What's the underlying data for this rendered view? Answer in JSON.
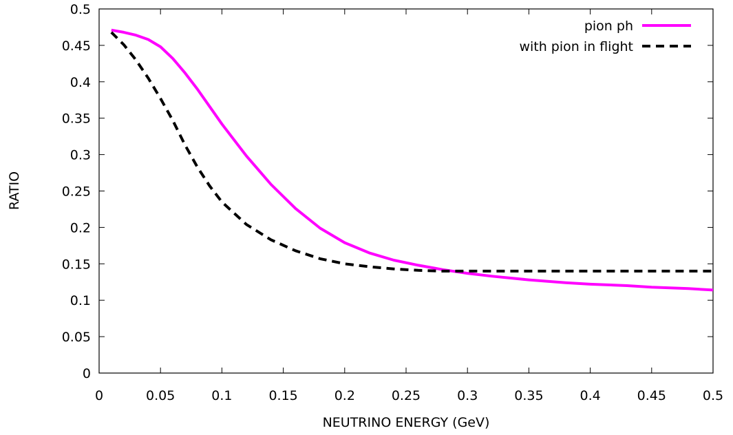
{
  "chart_data": {
    "type": "line",
    "title": "",
    "xlabel": "NEUTRINO ENERGY (GeV)",
    "ylabel": "RATIO",
    "xlim": [
      0,
      0.5
    ],
    "ylim": [
      0,
      0.5
    ],
    "x_ticks": [
      "0",
      "0.05",
      "0.1",
      "0.15",
      "0.2",
      "0.25",
      "0.3",
      "0.35",
      "0.4",
      "0.45",
      "0.5"
    ],
    "y_ticks": [
      "0",
      "0.05",
      "0.1",
      "0.15",
      "0.2",
      "0.25",
      "0.3",
      "0.35",
      "0.4",
      "0.45",
      "0.5"
    ],
    "grid": false,
    "legend_position": "top-right",
    "series": [
      {
        "name": "pion ph",
        "color": "#ff00ff",
        "style": "solid",
        "x": [
          0.01,
          0.02,
          0.03,
          0.04,
          0.05,
          0.06,
          0.07,
          0.08,
          0.09,
          0.1,
          0.12,
          0.14,
          0.16,
          0.18,
          0.2,
          0.22,
          0.24,
          0.26,
          0.28,
          0.3,
          0.32,
          0.35,
          0.38,
          0.4,
          0.43,
          0.45,
          0.48,
          0.5
        ],
        "y": [
          0.471,
          0.468,
          0.464,
          0.458,
          0.448,
          0.432,
          0.412,
          0.39,
          0.366,
          0.342,
          0.298,
          0.259,
          0.226,
          0.199,
          0.179,
          0.165,
          0.155,
          0.148,
          0.142,
          0.137,
          0.133,
          0.128,
          0.124,
          0.122,
          0.12,
          0.118,
          0.116,
          0.114
        ]
      },
      {
        "name": "with pion in flight",
        "color": "#000000",
        "style": "dashed",
        "x": [
          0.01,
          0.02,
          0.03,
          0.04,
          0.05,
          0.06,
          0.07,
          0.08,
          0.09,
          0.1,
          0.12,
          0.14,
          0.16,
          0.18,
          0.2,
          0.22,
          0.24,
          0.26,
          0.28,
          0.3,
          0.35,
          0.4,
          0.45,
          0.5
        ],
        "y": [
          0.468,
          0.451,
          0.43,
          0.405,
          0.377,
          0.347,
          0.313,
          0.283,
          0.257,
          0.235,
          0.204,
          0.183,
          0.168,
          0.157,
          0.15,
          0.146,
          0.143,
          0.141,
          0.14,
          0.14,
          0.14,
          0.14,
          0.14,
          0.14
        ]
      }
    ]
  }
}
